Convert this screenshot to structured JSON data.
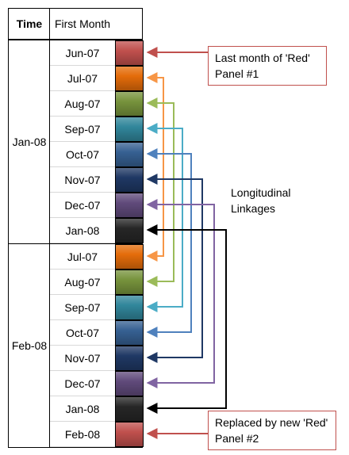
{
  "header": {
    "time": "Time",
    "first_month": "First Month"
  },
  "panels": [
    {
      "time": "Jan-08",
      "rows": [
        {
          "label": "Jun-07",
          "color": "#c0504d"
        },
        {
          "label": "Jul-07",
          "color": "#e46c0a"
        },
        {
          "label": "Aug-07",
          "color": "#77933c"
        },
        {
          "label": "Sep-07",
          "color": "#31869b"
        },
        {
          "label": "Oct-07",
          "color": "#366092"
        },
        {
          "label": "Nov-07",
          "color": "#1f3864"
        },
        {
          "label": "Dec-07",
          "color": "#604a7b"
        },
        {
          "label": "Jan-08",
          "color": "#262626"
        }
      ]
    },
    {
      "time": "Feb-08",
      "rows": [
        {
          "label": "Jul-07",
          "color": "#e46c0a"
        },
        {
          "label": "Aug-07",
          "color": "#77933c"
        },
        {
          "label": "Sep-07",
          "color": "#31869b"
        },
        {
          "label": "Oct-07",
          "color": "#366092"
        },
        {
          "label": "Nov-07",
          "color": "#1f3864"
        },
        {
          "label": "Dec-07",
          "color": "#604a7b"
        },
        {
          "label": "Jan-08",
          "color": "#262626"
        },
        {
          "label": "Feb-08",
          "color": "#c0504d"
        }
      ]
    }
  ],
  "annotations": {
    "last_red_line1": "Last month  of 'Red'",
    "last_red_line2": "Panel #1",
    "longitudinal_line1": "Longitudinal",
    "longitudinal_line2": "Linkages",
    "replaced_line1": "Replaced by new  'Red'",
    "replaced_line2": "Panel #2"
  },
  "colors": {
    "red_arrow": "#c0504d",
    "orange": "#f79646",
    "green": "#9bbb59",
    "teal": "#4bacc6",
    "blue": "#4f81bd",
    "navy": "#1f3864",
    "purple": "#8064a2",
    "black": "#000000"
  }
}
